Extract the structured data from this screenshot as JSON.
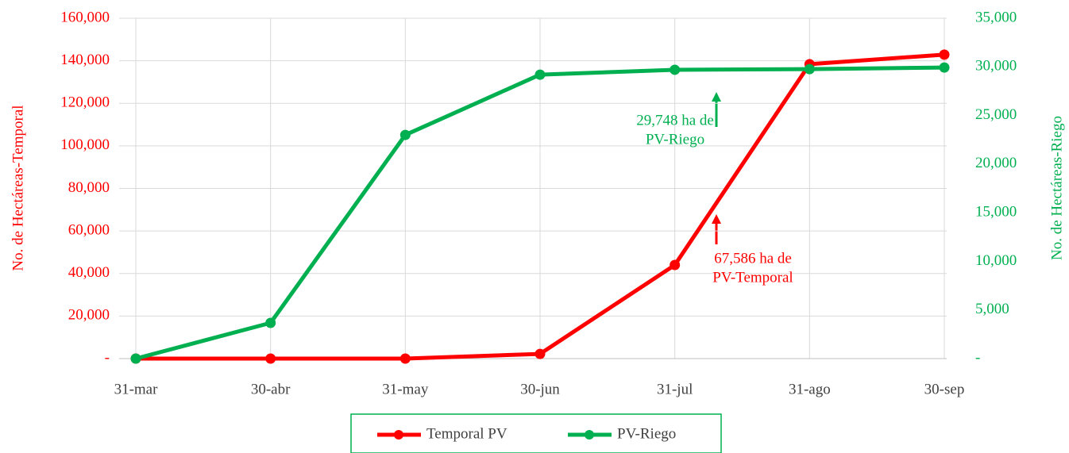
{
  "chart_data": {
    "type": "line",
    "categories": [
      "31-mar",
      "30-abr",
      "31-may",
      "30-jun",
      "31-jul",
      "31-ago",
      "30-sep"
    ],
    "series": [
      {
        "name": "Temporal PV",
        "color": "#ff0000",
        "values": [
          0,
          0,
          0,
          2200,
          44000,
          138400,
          142900
        ]
      },
      {
        "name": "PV-Riego",
        "color": "#00b050",
        "axis": "y2",
        "values": [
          0,
          3670,
          23000,
          29200,
          29700,
          29770,
          29930
        ]
      }
    ],
    "ylabel": "No. de Hectáreas-Temporal",
    "y2label": "No. de Hectáreas-Riego",
    "ylim": [
      0,
      160000
    ],
    "yticks": [
      {
        "value": 0,
        "label": "-"
      },
      {
        "value": 20000,
        "label": "20,000"
      },
      {
        "value": 40000,
        "label": "40,000"
      },
      {
        "value": 60000,
        "label": "60,000"
      },
      {
        "value": 80000,
        "label": "80,000"
      },
      {
        "value": 100000,
        "label": "100,000"
      },
      {
        "value": 120000,
        "label": "120,000"
      },
      {
        "value": 140000,
        "label": "140,000"
      },
      {
        "value": 160000,
        "label": "160,000"
      }
    ],
    "y2lim": [
      0,
      35000
    ],
    "y2ticks": [
      {
        "value": 0,
        "label": "-"
      },
      {
        "value": 5000,
        "label": "5,000"
      },
      {
        "value": 10000,
        "label": "10,000"
      },
      {
        "value": 15000,
        "label": "15,000"
      },
      {
        "value": 20000,
        "label": "20,000"
      },
      {
        "value": 25000,
        "label": "25,000"
      },
      {
        "value": 30000,
        "label": "30,000"
      },
      {
        "value": 35000,
        "label": "35,000"
      }
    ],
    "annotations": [
      {
        "lines": [
          "29,748 ha de",
          "PV-Riego"
        ],
        "color": "#00b050"
      },
      {
        "lines": [
          "67,586 ha de",
          "PV-Temporal"
        ],
        "color": "#ff0000"
      }
    ],
    "grid": true,
    "legend": "bottom"
  }
}
